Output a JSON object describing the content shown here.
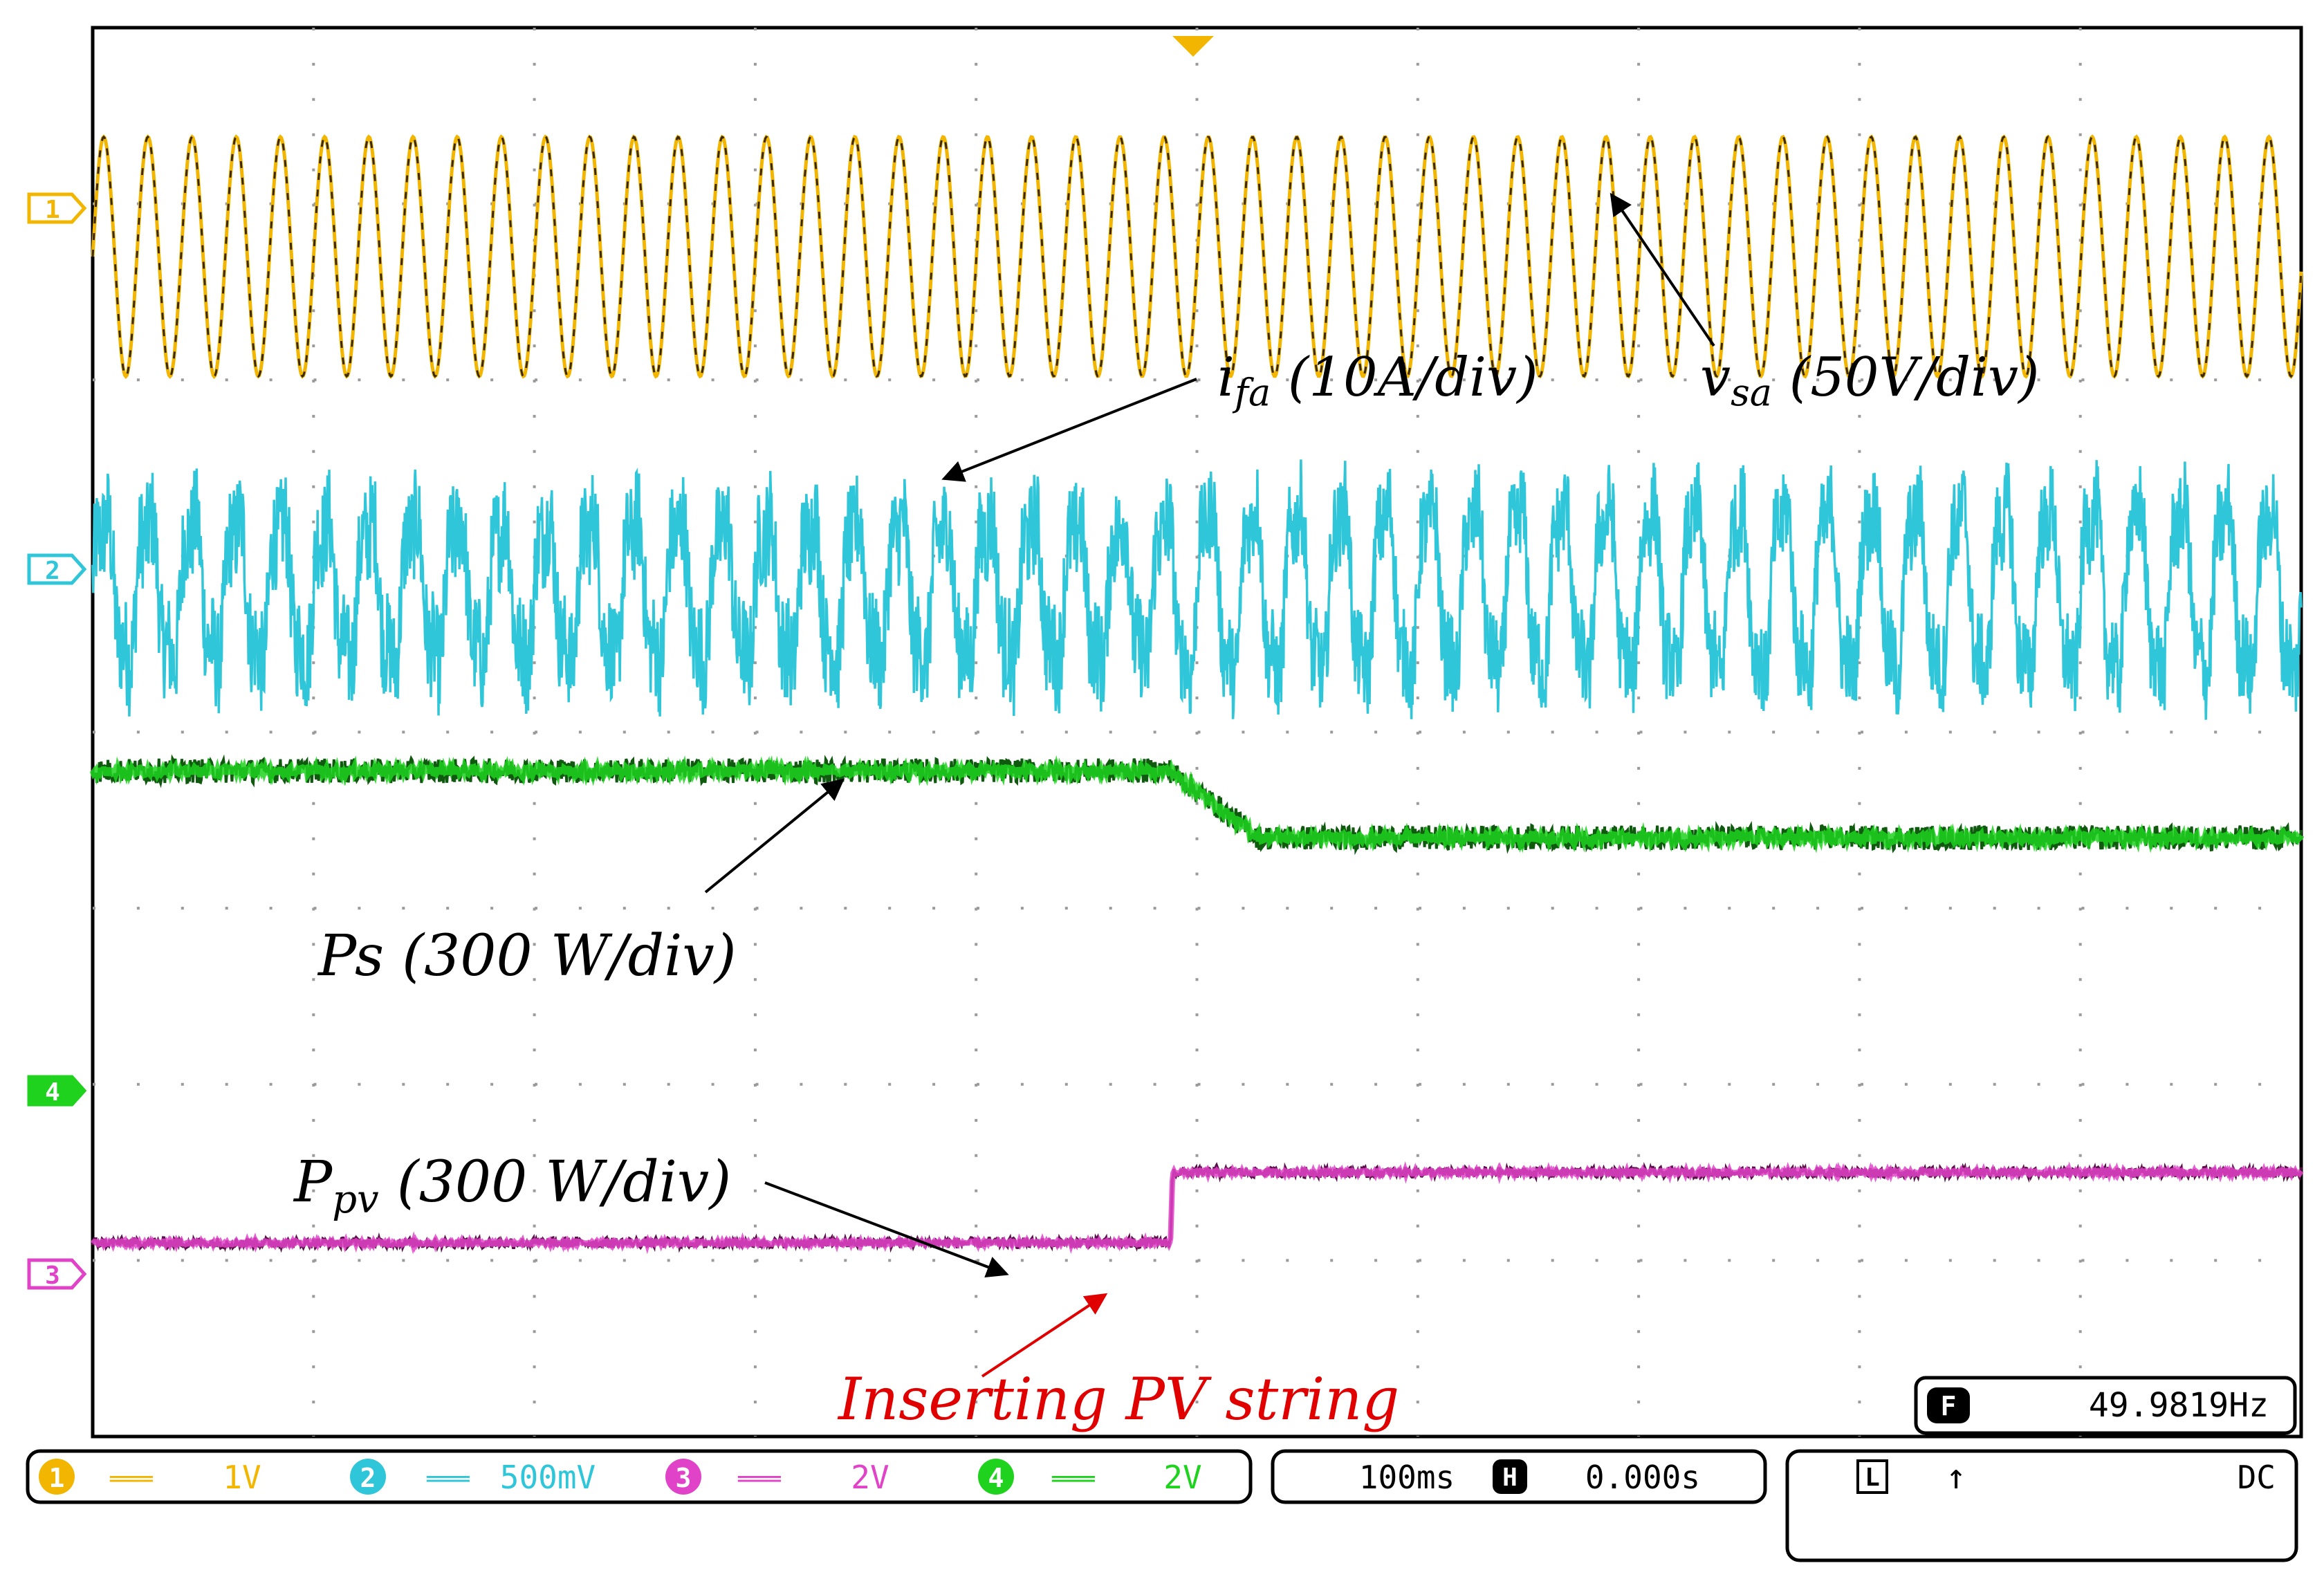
{
  "colors": {
    "ch1": "#f2b500",
    "ch2": "#2ec6d8",
    "ch3": "#e043c8",
    "ch4": "#1ed21e",
    "grid": "#9a9a9a",
    "arrow": "#000000",
    "insert": "#e00000",
    "frame": "#000000"
  },
  "chart_data": {
    "type": "line",
    "title": "",
    "xlabel": "",
    "ylabel": "",
    "time_per_div_ms": 100,
    "horizontal_divisions": 10,
    "vertical_divisions": 8,
    "event_time_ms": 488,
    "series": [
      {
        "name": "vsa (50V/div)",
        "channel": "1",
        "kind": "sine",
        "frequency_hz": 49.98,
        "center_div": 6.7,
        "amplitude_div": 0.68
      },
      {
        "name": "ifa (10A/div)",
        "channel": "2",
        "kind": "noisy_wave",
        "frequency_hz": 49.98,
        "center_div": 4.8,
        "amplitude_before_div": 0.55,
        "amplitude_after_div": 0.65
      },
      {
        "name": "Ps (300 W/div)",
        "channel": "4",
        "kind": "step",
        "level_before_div": 3.78,
        "level_after_div": 3.4,
        "noise_div": 0.07
      },
      {
        "name": "Ppv (300 W/div)",
        "channel": "3",
        "kind": "step",
        "level_before_div": 1.1,
        "level_after_div": 1.5,
        "noise_div": 0.03
      }
    ]
  },
  "markers": {
    "ch1": "1",
    "ch2": "2",
    "ch3": "3",
    "ch4": "4",
    "trigger_glyph": "▼"
  },
  "annotations": {
    "ifa_main": "i",
    "ifa_sub": "fa",
    "ifa_unit": " (10A/div)",
    "vsa_main": "v",
    "vsa_sub": "sa",
    "vsa_unit": " (50V/div)",
    "ps": "Ps (300 W/div)",
    "ppv_main": "P",
    "ppv_sub": "pv",
    "ppv_unit": " (300 W/div)",
    "insert": "Inserting PV string"
  },
  "frequency": {
    "badge": "F",
    "value": "49.9819Hz"
  },
  "status": {
    "ch1": {
      "num": "1",
      "coupling": "═══",
      "scale": "1V"
    },
    "ch2": {
      "num": "2",
      "coupling": "═══",
      "scale": "500mV"
    },
    "ch3": {
      "num": "3",
      "coupling": "═══",
      "scale": "2V"
    },
    "ch4": {
      "num": "4",
      "coupling": "═══",
      "scale": "2V"
    },
    "timebase": "100ms",
    "h_badge": "H",
    "delay": "0.000s",
    "trigger_mode": "L",
    "trigger_edge": "↑",
    "trigger_coupling": "DC"
  }
}
